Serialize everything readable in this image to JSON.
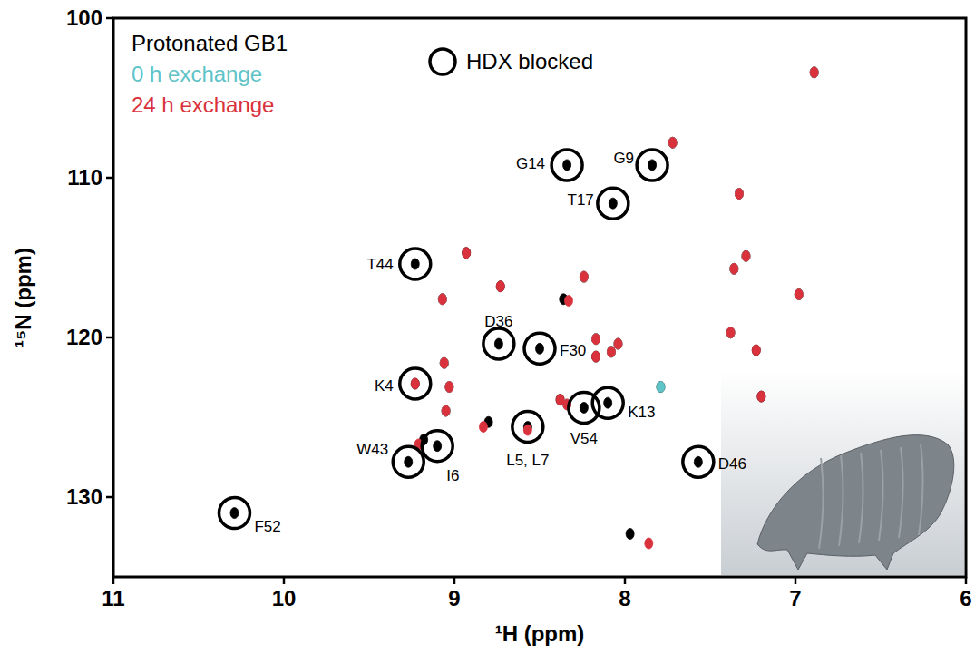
{
  "chart_data": {
    "type": "scatter",
    "x_label": "¹H (ppm)",
    "y_label": "¹⁵N (ppm)",
    "xlim": [
      11,
      6
    ],
    "ylim": [
      100,
      135
    ],
    "xticks": [
      11,
      10,
      9,
      8,
      7,
      6
    ],
    "yticks": [
      100,
      110,
      120,
      130
    ],
    "legend": "upper left",
    "grid": false,
    "series": [
      {
        "name": "Protonated GB1",
        "color": "#000000",
        "marker": "ellipse",
        "x": [
          6.89,
          7.72,
          7.84,
          8.34,
          8.07,
          7.33,
          7.29,
          7.36,
          8.93,
          9.23,
          8.73,
          8.24,
          8.36,
          9.07,
          6.98,
          7.38,
          7.23,
          8.17,
          8.04,
          8.08,
          8.17,
          8.74,
          8.5,
          9.06,
          9.03,
          7.79,
          7.2,
          9.23,
          8.38,
          8.1,
          8.24,
          9.05,
          8.8,
          8.57,
          9.18,
          9.1,
          9.27,
          7.57,
          10.29,
          7.97
        ],
        "values": [
          103.4,
          107.8,
          109.2,
          109.2,
          111.6,
          111.0,
          114.9,
          115.7,
          114.7,
          115.4,
          116.8,
          116.2,
          117.6,
          117.6,
          117.3,
          119.7,
          120.8,
          120.1,
          120.4,
          120.9,
          121.2,
          120.4,
          120.7,
          121.6,
          123.1,
          123.1,
          123.7,
          122.9,
          123.9,
          124.1,
          124.4,
          124.6,
          125.3,
          125.6,
          126.4,
          126.8,
          127.8,
          127.8,
          131.0,
          132.3
        ]
      },
      {
        "name": "0 h exchange",
        "color": "#5fc4c8",
        "marker": "ellipse",
        "x": [
          6.89,
          7.72,
          7.33,
          7.29,
          7.36,
          8.24,
          9.07,
          6.98,
          7.38,
          8.17,
          8.04,
          8.08,
          9.06,
          9.03,
          7.79,
          8.34,
          9.05
        ],
        "values": [
          103.4,
          107.8,
          111.0,
          114.9,
          115.7,
          116.2,
          117.6,
          117.3,
          119.7,
          120.1,
          120.4,
          120.9,
          121.6,
          123.1,
          123.1,
          124.2,
          124.6
        ]
      },
      {
        "name": "24 h exchange",
        "color": "#d9323c",
        "marker": "ellipse",
        "x": [
          6.89,
          7.72,
          7.33,
          7.29,
          7.36,
          8.93,
          8.73,
          8.24,
          8.33,
          9.07,
          6.98,
          7.38,
          7.23,
          8.17,
          8.04,
          8.08,
          8.17,
          9.06,
          9.03,
          7.2,
          8.38,
          8.34,
          9.23,
          9.05,
          8.83,
          8.57,
          9.21,
          7.86
        ],
        "values": [
          103.4,
          107.8,
          111.0,
          114.9,
          115.7,
          114.7,
          116.8,
          116.2,
          117.7,
          117.6,
          117.3,
          119.7,
          120.8,
          120.1,
          120.4,
          120.9,
          121.2,
          121.6,
          123.1,
          123.7,
          123.9,
          124.2,
          122.9,
          124.6,
          125.6,
          125.8,
          126.7,
          132.9
        ]
      }
    ],
    "blocked": {
      "name": "HDX blocked",
      "peaks": [
        {
          "label": "G14",
          "x": 8.34,
          "y": 109.2
        },
        {
          "label": "G9",
          "x": 7.84,
          "y": 109.2
        },
        {
          "label": "T17",
          "x": 8.07,
          "y": 111.6
        },
        {
          "label": "T44",
          "x": 9.23,
          "y": 115.4
        },
        {
          "label": "D36",
          "x": 8.74,
          "y": 120.4
        },
        {
          "label": "F30",
          "x": 8.5,
          "y": 120.7
        },
        {
          "label": "K4",
          "x": 9.23,
          "y": 122.9
        },
        {
          "label": "K13",
          "x": 8.1,
          "y": 124.1
        },
        {
          "label": "V54",
          "x": 8.24,
          "y": 124.4
        },
        {
          "label": "L5, L7",
          "x": 8.57,
          "y": 125.6
        },
        {
          "label": "I6",
          "x": 9.1,
          "y": 126.8
        },
        {
          "label": "W43",
          "x": 9.27,
          "y": 127.8
        },
        {
          "label": "D46",
          "x": 7.57,
          "y": 127.8
        },
        {
          "label": "F52",
          "x": 10.29,
          "y": 131.0
        }
      ]
    }
  }
}
